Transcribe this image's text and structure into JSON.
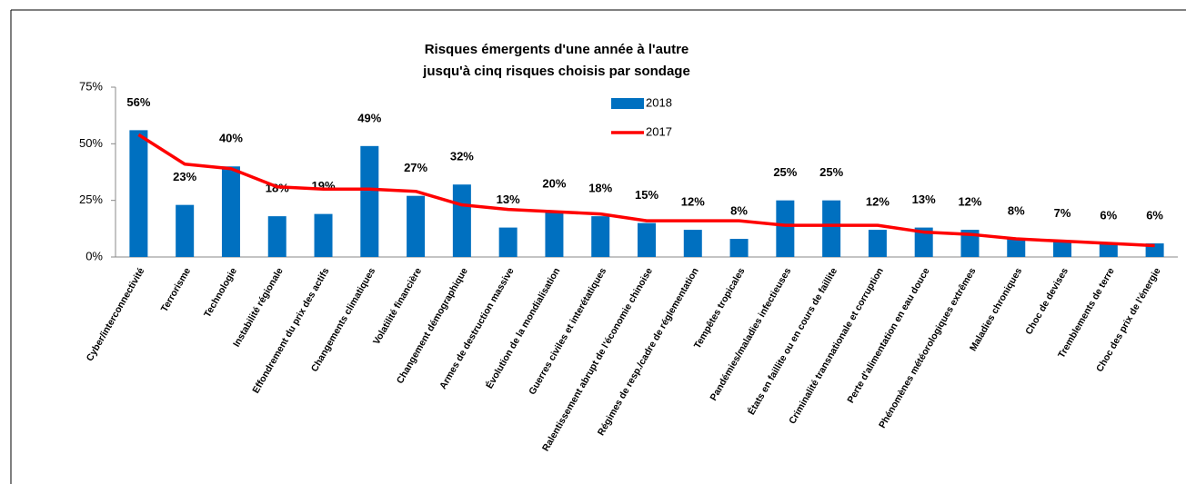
{
  "chart_data": {
    "type": "bar_line",
    "title": "Risques émergents d'une année à l'autre",
    "subtitle": "jusqu'à cinq risques choisis par sondage",
    "categories": [
      "Cyber/interconnectivité",
      "Terrorisme",
      "Technologie",
      "Instabilité régionale",
      "Effondrement du prix des actifs",
      "Changements climatiques",
      "Volatilité financière",
      "Changement démographique",
      "Armes de destruction massive",
      "Évolution de la mondialisation",
      "Guerres civiles et interétatiques",
      "Ralentissement abrupt de l'économie chinoise",
      "Régimes de resp./cadre de réglementation",
      "Tempêtes tropicales",
      "Pandémies/maladies infectieuses",
      "États en faillite ou en cours de faillite",
      "Criminalité transnationale et corruption",
      "Perte d'alimentation en eau douce",
      "Phénomènes météorologiques extrêmes",
      "Maladies chroniques",
      "Choc de devises",
      "Tremblements de terre",
      "Choc des prix de l'énergie"
    ],
    "series": [
      {
        "name": "2018",
        "type": "bar",
        "color": "#0070c0",
        "values": [
          56,
          23,
          40,
          18,
          19,
          49,
          27,
          32,
          13,
          20,
          18,
          15,
          12,
          8,
          25,
          25,
          12,
          13,
          12,
          8,
          7,
          6,
          6
        ],
        "value_labels": [
          "56%",
          "23%",
          "40%",
          "18%",
          "19%",
          "49%",
          "27%",
          "32%",
          "13%",
          "20%",
          "18%",
          "15%",
          "12%",
          "8%",
          "25%",
          "25%",
          "12%",
          "13%",
          "12%",
          "8%",
          "7%",
          "6%",
          "6%"
        ]
      },
      {
        "name": "2017",
        "type": "line",
        "color": "#ff0000",
        "values": [
          54,
          41,
          39,
          31,
          30,
          30,
          29,
          23,
          21,
          20,
          19,
          16,
          16,
          16,
          14,
          14,
          14,
          11,
          10,
          8,
          7,
          6,
          5
        ]
      }
    ],
    "ylim": [
      0,
      75
    ],
    "yticks": [
      {
        "value": 0,
        "label": "0%"
      },
      {
        "value": 25,
        "label": "25%"
      },
      {
        "value": 50,
        "label": "50%"
      },
      {
        "value": 75,
        "label": "75%"
      }
    ]
  }
}
